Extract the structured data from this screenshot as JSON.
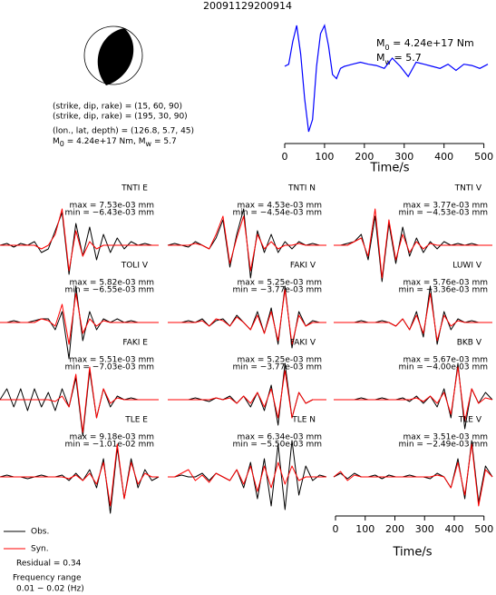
{
  "title": "20091129200914",
  "mechanism": {
    "plane1": "(strike, dip, rake) = (15, 60, 90)",
    "plane2": "(strike, dip, rake) = (195, 30, 90)",
    "location": "(lon., lat, depth) = (126.8, 5.7, 45)",
    "moment": {
      "m": "M",
      "m_sub": "0",
      "m_text": " = 4.24e+17 Nm, ",
      "w": "M",
      "w_sub": "w",
      "w_text": " = 5.7"
    }
  },
  "stf": {
    "type": "line",
    "color": "#0000ff",
    "xlabel": "Time/s",
    "moment": {
      "symbol": "M",
      "sub": "0",
      "text": " = 4.24e+17 Nm"
    },
    "magnitude": {
      "symbol": "M",
      "sub": "w",
      "text": " = 5.7"
    },
    "xlim": [
      0,
      510
    ],
    "xticks": [
      0,
      100,
      200,
      300,
      400,
      500
    ],
    "x": [
      0,
      10,
      20,
      30,
      40,
      50,
      60,
      70,
      80,
      90,
      100,
      110,
      120,
      130,
      140,
      150,
      170,
      190,
      210,
      230,
      250,
      270,
      290,
      310,
      330,
      350,
      370,
      390,
      410,
      430,
      450,
      470,
      490,
      510
    ],
    "values": [
      0,
      0.05,
      0.6,
      1.0,
      0.3,
      -0.8,
      -1.6,
      -1.3,
      0,
      0.8,
      1.0,
      0.5,
      -0.2,
      -0.3,
      -0.05,
      0,
      0.05,
      0.1,
      0.05,
      0.02,
      -0.05,
      0.2,
      0,
      -0.25,
      0.1,
      0.05,
      0,
      -0.05,
      0.05,
      -0.1,
      0.05,
      0.02,
      -0.05,
      0.05
    ]
  },
  "obs_color": "#000000",
  "syn_color": "#ff0000",
  "panels": [
    {
      "station": "TNTI E",
      "max": "max = 7.53e-03 mm",
      "min": "min = −6.43e-03 mm",
      "obs": [
        0,
        0.05,
        -0.05,
        0.05,
        0,
        0.1,
        -0.2,
        -0.1,
        0.4,
        0.9,
        -0.8,
        0.6,
        -0.3,
        0.5,
        -0.4,
        0.3,
        -0.2,
        0.2,
        -0.1,
        0.1,
        0,
        0.05,
        0,
        0
      ],
      "syn": [
        0,
        0,
        0,
        0,
        0,
        0,
        -0.1,
        0,
        0.3,
        1,
        -0.7,
        0.4,
        -0.3,
        0.1,
        -0.1,
        0,
        0,
        0,
        0,
        0,
        0,
        0,
        0,
        0
      ]
    },
    {
      "station": "TNTI N",
      "max": "max = 4.53e-03 mm",
      "min": "min = −4.54e-03 mm",
      "obs": [
        0,
        0.05,
        0,
        -0.05,
        0.1,
        0,
        -0.1,
        0.2,
        0.7,
        -0.6,
        0.3,
        1,
        -0.9,
        0.4,
        -0.2,
        0.3,
        -0.2,
        0.1,
        -0.1,
        0.1,
        0,
        0.05,
        0,
        0
      ],
      "syn": [
        0,
        0,
        0,
        0,
        0.05,
        0,
        -0.1,
        0.3,
        0.8,
        -0.5,
        0.2,
        0.8,
        -0.7,
        0.3,
        -0.1,
        0.1,
        -0.1,
        0,
        0,
        0.05,
        0,
        0,
        0,
        0
      ]
    },
    {
      "station": "TNTI V",
      "max": "max = 3.77e-03 mm",
      "min": "min = −4.53e-03 mm",
      "obs": [
        0,
        0,
        0.05,
        0.1,
        0.3,
        -0.4,
        0.8,
        -1,
        0.6,
        -0.5,
        0.5,
        -0.3,
        0.2,
        -0.2,
        0.1,
        -0.1,
        0.1,
        0,
        0.05,
        0,
        0.05,
        0,
        0,
        0
      ],
      "syn": [
        0,
        0,
        0,
        0.1,
        0.2,
        -0.3,
        1,
        -0.9,
        0.7,
        -0.4,
        0.3,
        -0.2,
        0.1,
        -0.1,
        0.05,
        0,
        0,
        0,
        0,
        0,
        0,
        0,
        0,
        0
      ]
    },
    {
      "station": "TOLI V",
      "max": "max = 5.82e-03 mm",
      "min": "min = −6.55e-03 mm",
      "obs": [
        0,
        0,
        0.05,
        0,
        0,
        0.05,
        0.1,
        0.1,
        -0.2,
        0.3,
        -1,
        1,
        -0.5,
        0.3,
        -0.2,
        0.1,
        0,
        0.1,
        0,
        0.05,
        0,
        0,
        0,
        0
      ],
      "syn": [
        0,
        0,
        0,
        0,
        0,
        0,
        0.1,
        0.05,
        -0.1,
        0.5,
        -0.6,
        0.8,
        -0.3,
        0.1,
        -0.1,
        0.05,
        0,
        0,
        0,
        0,
        0,
        0,
        0,
        0
      ]
    },
    {
      "station": "FAKI V",
      "max": "max = 5.25e-03 mm",
      "min": "min = −3.77e-03 mm",
      "obs": [
        0,
        0,
        0,
        0.05,
        0,
        0.1,
        -0.1,
        0.05,
        0.1,
        -0.1,
        0.2,
        0,
        -0.2,
        0.3,
        -0.3,
        0.4,
        -0.6,
        1,
        -0.7,
        0.3,
        -0.1,
        0.05,
        0,
        0
      ],
      "syn": [
        0,
        0,
        0,
        0,
        0,
        0.05,
        -0.1,
        0.1,
        0.05,
        -0.1,
        0.15,
        0,
        -0.2,
        0.2,
        -0.3,
        0.3,
        -0.5,
        0.9,
        -0.6,
        0.2,
        -0.1,
        0,
        0,
        0
      ]
    },
    {
      "station": "LUWI V",
      "max": "max = 5.76e-03 mm",
      "min": "min = −3.36e-03 mm",
      "obs": [
        0,
        0,
        0,
        0,
        0.05,
        0,
        0,
        0.05,
        0,
        -0.1,
        0.1,
        -0.2,
        0.3,
        -0.4,
        1,
        -0.6,
        0.3,
        -0.2,
        0.1,
        0,
        0.05,
        0,
        0,
        0
      ],
      "syn": [
        0,
        0,
        0,
        0,
        0,
        0,
        0,
        0,
        0,
        -0.1,
        0.1,
        -0.2,
        0.2,
        -0.3,
        0.8,
        -0.5,
        0.2,
        -0.1,
        0.05,
        0,
        0,
        0,
        0,
        0
      ]
    },
    {
      "station": "FAKI E",
      "max": "max = 5.51e-03 mm",
      "min": "min = −7.03e-03 mm",
      "obs": [
        0,
        0.3,
        -0.2,
        0.3,
        -0.3,
        0.3,
        -0.2,
        0.2,
        -0.3,
        0.3,
        -0.2,
        0.6,
        -1,
        0.8,
        -0.5,
        0.3,
        -0.2,
        0.1,
        0,
        0.05,
        0,
        0,
        0,
        0
      ],
      "syn": [
        0,
        0,
        0,
        0,
        0,
        0,
        0,
        0,
        -0.05,
        0.1,
        -0.2,
        0.7,
        -0.9,
        0.9,
        -0.5,
        0.3,
        -0.1,
        0.05,
        0,
        0,
        0,
        0,
        0,
        0
      ]
    },
    {
      "station": "FAKI V",
      "max": "max = 5.25e-03 mm",
      "min": "min = −3.77e-03 mm",
      "obs": [
        0,
        0,
        0,
        0,
        0.05,
        0,
        -0.05,
        0.05,
        0,
        0.1,
        -0.1,
        0.1,
        -0.2,
        0.2,
        -0.3,
        0.4,
        -0.7,
        1,
        -0.5,
        0.2,
        -0.1,
        0,
        0,
        0
      ],
      "syn": [
        0,
        0,
        0,
        0,
        0,
        0,
        0,
        0.05,
        0,
        0.05,
        -0.1,
        0.1,
        -0.1,
        0.2,
        -0.2,
        0.3,
        -0.5,
        0.8,
        -0.5,
        0.2,
        -0.1,
        0,
        0,
        0
      ]
    },
    {
      "station": "BKB V",
      "max": "max = 5.67e-03 mm",
      "min": "min = −4.00e-03 mm",
      "obs": [
        0,
        0,
        0,
        0,
        0.05,
        0,
        0,
        0.05,
        0,
        0,
        0.05,
        -0.05,
        0.1,
        -0.1,
        0.1,
        -0.2,
        0.3,
        -0.5,
        1,
        -0.8,
        0.3,
        -0.1,
        0.2,
        0
      ],
      "syn": [
        0,
        0,
        0,
        0,
        0,
        0,
        0,
        0,
        0,
        0,
        0,
        0,
        0.05,
        -0.05,
        0.1,
        -0.1,
        0.2,
        -0.4,
        0.9,
        -0.6,
        0.3,
        -0.1,
        0.05,
        0
      ]
    },
    {
      "station": "TLE E",
      "max": "max = 9.18e-03 mm",
      "min": "min = −1.01e-02 mm",
      "obs": [
        0,
        0.05,
        0,
        0,
        -0.05,
        0,
        0.05,
        0,
        0,
        0.05,
        -0.1,
        0.1,
        -0.1,
        0.2,
        -0.3,
        0.5,
        -1,
        0.8,
        -0.6,
        0.5,
        -0.3,
        0.2,
        -0.1,
        0
      ],
      "syn": [
        0,
        0,
        0,
        0,
        0,
        0,
        0,
        0,
        0,
        0,
        -0.05,
        0.05,
        -0.1,
        0.1,
        -0.2,
        0.4,
        -0.8,
        0.9,
        -0.6,
        0.4,
        -0.2,
        0.1,
        0,
        0
      ]
    },
    {
      "station": "TLE N",
      "max": "max = 6.34e-03 mm",
      "min": "min = −5.50e-03 mm",
      "obs": [
        0,
        0,
        0.05,
        0,
        0,
        0.1,
        -0.1,
        0.1,
        0,
        -0.1,
        0.2,
        -0.3,
        0.4,
        -0.6,
        0.5,
        -0.8,
        0.9,
        -0.9,
        1,
        -0.5,
        0.3,
        -0.1,
        0.05,
        0
      ],
      "syn": [
        0,
        0,
        0.1,
        0.2,
        -0.1,
        0.05,
        -0.15,
        0.1,
        0,
        -0.1,
        0.2,
        -0.2,
        0.3,
        -0.4,
        0.3,
        -0.3,
        0.4,
        -0.2,
        0.3,
        -0.1,
        0,
        0,
        0,
        0
      ]
    },
    {
      "station": "TLE V",
      "max": "max = 3.51e-03 mm",
      "min": "min = −2.49e-03 mm",
      "obs": [
        0,
        0.1,
        -0.05,
        0.1,
        0,
        0,
        0.05,
        -0.05,
        0.05,
        0,
        0,
        0.05,
        0,
        0,
        -0.05,
        0.1,
        0,
        -0.3,
        0.5,
        -0.6,
        1,
        -0.7,
        0.3,
        0
      ],
      "syn": [
        0,
        0.15,
        -0.1,
        0.05,
        0,
        0,
        0,
        0,
        0,
        0,
        0,
        0,
        0,
        0,
        0,
        0.05,
        0,
        -0.3,
        0.4,
        -0.5,
        0.9,
        -0.8,
        0.2,
        0
      ]
    }
  ],
  "time_axis": {
    "xlabel": "Time/s",
    "xlim": [
      0,
      510
    ],
    "xticks": [
      0,
      100,
      200,
      300,
      400,
      500
    ]
  },
  "legend": {
    "obs": "Obs.",
    "syn": "Syn."
  },
  "residual": "Residual = 0.34",
  "frequency_title": "Frequency range",
  "frequency": "0.01 − 0.02 (Hz)"
}
